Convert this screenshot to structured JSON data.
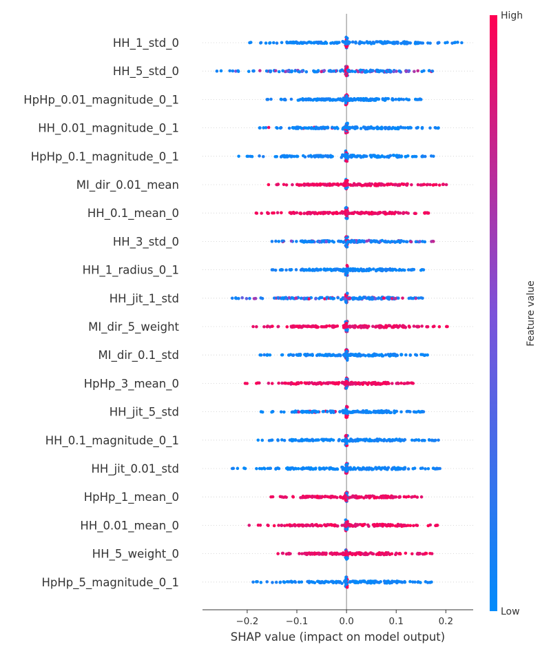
{
  "chart_data": {
    "type": "scatter",
    "subtype": "shap-beeswarm",
    "title": "",
    "xlabel": "SHAP value (impact on model output)",
    "xlim": [
      -0.29,
      0.255
    ],
    "xticks": [
      -0.2,
      -0.1,
      0.0,
      0.1,
      0.2
    ],
    "xtick_labels": [
      "−0.2",
      "−0.1",
      "0.0",
      "0.1",
      "0.2"
    ],
    "colorbar": {
      "label": "Feature value",
      "high_label": "High",
      "low_label": "Low",
      "low_color": "#008bfb",
      "mid_color": "#7c52d9",
      "high_color": "#ff0052"
    },
    "features": [
      {
        "name": "HH_1_std_0",
        "min": -0.195,
        "max": 0.232,
        "pattern": "low"
      },
      {
        "name": "HH_5_std_0",
        "min": -0.261,
        "max": 0.173,
        "pattern": "mixed"
      },
      {
        "name": "HpHp_0.01_magnitude_0_1",
        "min": -0.16,
        "max": 0.15,
        "pattern": "low"
      },
      {
        "name": "HH_0.01_magnitude_0_1",
        "min": -0.175,
        "max": 0.185,
        "pattern": "low-negneg"
      },
      {
        "name": "HpHp_0.1_magnitude_0_1",
        "min": -0.217,
        "max": 0.175,
        "pattern": "low"
      },
      {
        "name": "MI_dir_0.01_mean",
        "min": -0.157,
        "max": 0.201,
        "pattern": "high"
      },
      {
        "name": "HH_0.1_mean_0",
        "min": -0.182,
        "max": 0.165,
        "pattern": "high"
      },
      {
        "name": "HH_3_std_0",
        "min": -0.15,
        "max": 0.175,
        "pattern": "mixed"
      },
      {
        "name": "HH_1_radius_0_1",
        "min": -0.15,
        "max": 0.155,
        "pattern": "low"
      },
      {
        "name": "HH_jit_1_std",
        "min": -0.23,
        "max": 0.153,
        "pattern": "mixed"
      },
      {
        "name": "MI_dir_5_weight",
        "min": -0.188,
        "max": 0.203,
        "pattern": "high"
      },
      {
        "name": "MI_dir_0.1_std",
        "min": -0.174,
        "max": 0.163,
        "pattern": "low"
      },
      {
        "name": "HpHp_3_mean_0",
        "min": -0.204,
        "max": 0.134,
        "pattern": "high"
      },
      {
        "name": "HH_jit_5_std",
        "min": -0.172,
        "max": 0.155,
        "pattern": "low-negneg"
      },
      {
        "name": "HH_0.1_magnitude_0_1",
        "min": -0.178,
        "max": 0.185,
        "pattern": "low"
      },
      {
        "name": "HH_jit_0.01_std",
        "min": -0.23,
        "max": 0.188,
        "pattern": "low"
      },
      {
        "name": "HpHp_1_mean_0",
        "min": -0.152,
        "max": 0.151,
        "pattern": "high"
      },
      {
        "name": "HH_0.01_mean_0",
        "min": -0.196,
        "max": 0.183,
        "pattern": "high"
      },
      {
        "name": "HH_5_weight_0",
        "min": -0.138,
        "max": 0.172,
        "pattern": "high"
      },
      {
        "name": "HpHp_5_magnitude_0_1",
        "min": -0.188,
        "max": 0.171,
        "pattern": "low"
      }
    ]
  }
}
